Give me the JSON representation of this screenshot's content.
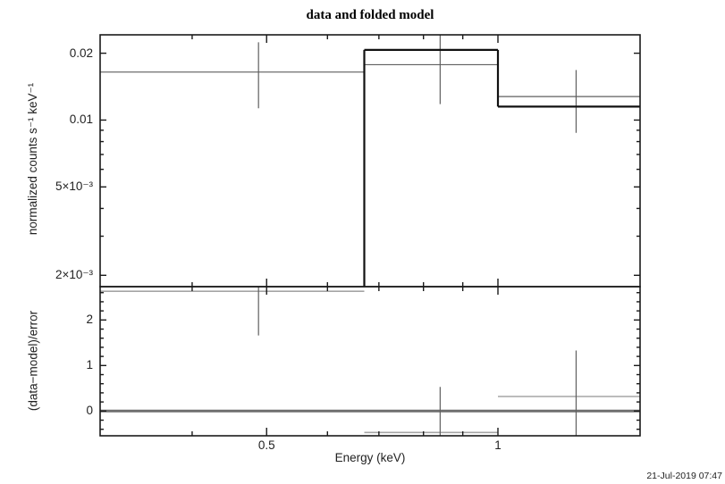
{
  "title": "data and folded model",
  "timestamp": "21-Jul-2019 07:47",
  "colors": {
    "frame": "#1a1a1a",
    "model": "#111111",
    "data": "#5f5f5f",
    "residual_line": "#a5a5a5",
    "error_bar": "#5f5f5f",
    "zero_line": "#6e6e6e"
  },
  "chart_data": {
    "type": "line",
    "title": "data and folded model",
    "xlabel": "Energy (keV)",
    "xscale": "log",
    "xlim": [
      0.3036,
      1.531
    ],
    "x_major_ticks": [
      {
        "value": 0.5,
        "label": "0.5"
      },
      {
        "value": 1,
        "label": "1"
      }
    ],
    "x_minor_ticks": [
      0.4,
      0.6,
      0.7,
      0.8,
      0.9
    ],
    "panels": [
      {
        "name": "spectrum",
        "ylabel": "normalized counts s⁻¹ keV⁻¹",
        "yscale": "log",
        "ylim": [
          0.001778,
          0.0242
        ],
        "y_major_ticks": [
          {
            "value": 0.02,
            "label": "0.02"
          },
          {
            "value": 0.01,
            "label": "0.01"
          },
          {
            "value": 0.005,
            "label": "5×10⁻³"
          },
          {
            "value": 0.002,
            "label": "2×10⁻³"
          }
        ],
        "y_minor_ticks": [
          0.009,
          0.008,
          0.007,
          0.006,
          0.004,
          0.003
        ],
        "data_points": [
          {
            "x": 0.488,
            "xlow": 0.3036,
            "xhigh": 0.67,
            "y": 0.01645,
            "y_err_low": 0.0113,
            "y_err_high": 0.0224
          },
          {
            "x": 0.841,
            "xlow": 0.67,
            "xhigh": 1.0,
            "y": 0.01776,
            "y_err_low": 0.0118,
            "y_err_high": null
          },
          {
            "x": 1.264,
            "xlow": 1.0,
            "xhigh": 1.531,
            "y": 0.01276,
            "y_err_low": 0.00876,
            "y_err_high": 0.0168
          }
        ],
        "model_steps": [
          {
            "xlow": 0.3036,
            "xhigh": 0.67,
            "y": null
          },
          {
            "xlow": 0.67,
            "xhigh": 1.0,
            "y": 0.0207
          },
          {
            "xlow": 1.0,
            "xhigh": 1.531,
            "y": 0.0115
          }
        ]
      },
      {
        "name": "residuals",
        "ylabel": "(data−model)/error",
        "yscale": "linear",
        "ylim": [
          -0.543,
          2.732
        ],
        "y_major_ticks": [
          {
            "value": 2,
            "label": "2"
          },
          {
            "value": 1,
            "label": "1"
          },
          {
            "value": 0,
            "label": "0"
          }
        ],
        "y_minor_ticks": [
          -0.4,
          -0.2,
          0.2,
          0.4,
          0.6,
          0.8,
          1.2,
          1.4,
          1.6,
          1.8,
          2.2,
          2.4,
          2.6
        ],
        "zero_line": 0,
        "data_points": [
          {
            "x": 0.488,
            "xlow": 0.3036,
            "xhigh": 0.67,
            "y": 2.63,
            "y_err_low": 1.66,
            "y_err_high": null
          },
          {
            "x": 0.841,
            "xlow": 0.67,
            "xhigh": 1.0,
            "y": -0.47,
            "y_err_low": null,
            "y_err_high": 0.53
          },
          {
            "x": 1.264,
            "xlow": 1.0,
            "xhigh": 1.531,
            "y": 0.32,
            "y_err_low": null,
            "y_err_high": 1.33
          }
        ]
      }
    ]
  }
}
